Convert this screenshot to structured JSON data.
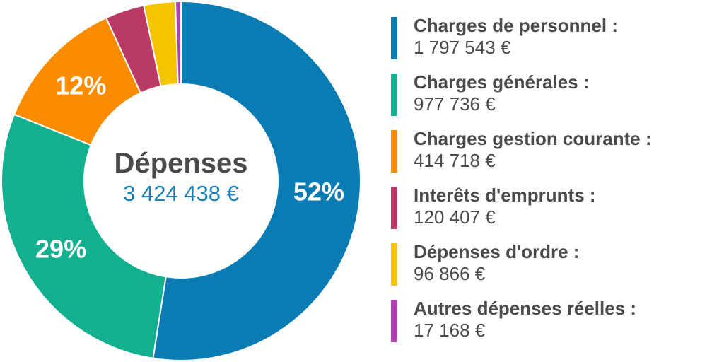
{
  "chart_data": {
    "type": "pie",
    "variant": "donut",
    "center": {
      "title": "Dépenses",
      "total": "3 424 438 €"
    },
    "slices": [
      {
        "label": "Charges de personnel :",
        "value": 1797543,
        "value_text": "1 797 543 €",
        "percent_label": "52%",
        "color": "#0b7bb4"
      },
      {
        "label": "Charges générales :",
        "value": 977736,
        "value_text": "977 736 €",
        "percent_label": "29%",
        "color": "#13b08f"
      },
      {
        "label": "Charges gestion courante :",
        "value": 414718,
        "value_text": "414 718 €",
        "percent_label": "12%",
        "color": "#fb8c00"
      },
      {
        "label": "Interêts d'emprunts :",
        "value": 120407,
        "value_text": "120 407 €",
        "percent_label": "",
        "color": "#b93a63"
      },
      {
        "label": "Dépenses d'ordre :",
        "value": 96866,
        "value_text": "96 866 €",
        "percent_label": "",
        "color": "#f6c300"
      },
      {
        "label": "Autres dépenses réelles :",
        "value": 17168,
        "value_text": "17 168 €",
        "percent_label": "",
        "color": "#b340b3"
      }
    ],
    "legend_position": "right"
  }
}
